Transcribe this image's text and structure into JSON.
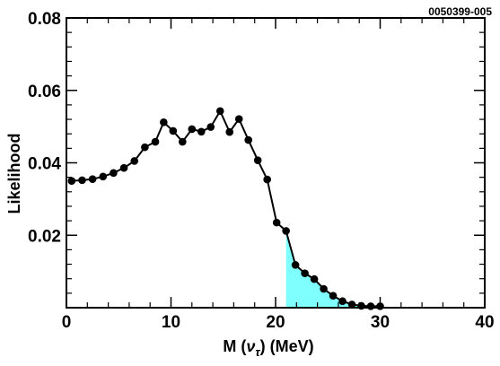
{
  "figure_id": "0050399-005",
  "chart_data": {
    "type": "line",
    "xlabel_prefix": "M (",
    "xlabel_symbol": "ν",
    "xlabel_subscript": "τ",
    "xlabel_suffix": ") (MeV)",
    "ylabel": "Likelihood",
    "xlim": [
      0,
      40
    ],
    "ylim": [
      0,
      0.08
    ],
    "x_ticks": [
      0,
      10,
      20,
      30,
      40
    ],
    "x_tick_labels": [
      "0",
      "10",
      "20",
      "30",
      "40"
    ],
    "y_ticks": [
      0.02,
      0.04,
      0.06,
      0.08
    ],
    "y_tick_labels": [
      "0.02",
      "0.04",
      "0.06",
      "0.08"
    ],
    "grid": false,
    "series": [
      {
        "x": [
          0.5,
          1.5,
          2.5,
          3.5,
          4.5,
          5.5,
          6.5,
          7.5,
          8.5,
          9.3,
          10.2,
          11.1,
          12.0,
          12.9,
          13.8,
          14.7,
          15.6,
          16.5,
          17.4,
          18.3,
          19.2,
          20.1,
          21.0,
          21.9,
          22.8,
          23.7,
          24.6,
          25.5,
          26.4,
          27.3,
          28.2,
          29.1,
          30.0
        ],
        "values": [
          0.035,
          0.0352,
          0.0355,
          0.0362,
          0.0372,
          0.0386,
          0.0405,
          0.0443,
          0.0458,
          0.0512,
          0.0488,
          0.0458,
          0.0493,
          0.0486,
          0.0499,
          0.0543,
          0.0485,
          0.0521,
          0.0463,
          0.0407,
          0.0354,
          0.0235,
          0.0212,
          0.0118,
          0.0095,
          0.0079,
          0.0052,
          0.0033,
          0.0018,
          0.0009,
          0.0005,
          0.0004,
          0.0004
        ]
      }
    ],
    "shaded_region": {
      "from_x": 21.0,
      "color": "#80ffff"
    },
    "line_color": "#000000"
  }
}
